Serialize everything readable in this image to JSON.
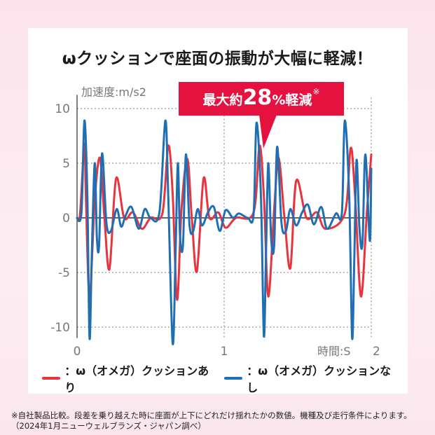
{
  "title": "ωクッションで座面の振動が大幅に軽減！",
  "callout": {
    "prefix": "最大約",
    "number": "28",
    "percent": "%",
    "suffix": "軽減",
    "mark": "※"
  },
  "legend": [
    {
      "label": "：ω（オメガ）クッションあり",
      "color": "#e8343f"
    },
    {
      "label": "：ω（オメガ）クッションなし",
      "color": "#1f6fb2"
    }
  ],
  "footnote": "※自社製品比較。段差を乗り越えた時に座面が上下にどれだけ揺れたかの数値。機種及び走行条件によります。（2024年1月ニューウェルブランズ・ジャパン調べ）",
  "chart_data": {
    "type": "line",
    "ylabel": "加速度:m/s2",
    "xlabel": "時間:S",
    "xlim": [
      0,
      2
    ],
    "ylim": [
      -11,
      11
    ],
    "x_ticks": [
      0,
      1,
      2
    ],
    "x_tick_labels": [
      "0",
      "1",
      "2"
    ],
    "y_ticks": [
      10,
      5,
      0,
      -5,
      -10
    ],
    "y_tick_labels": [
      "10",
      "5",
      "0",
      "-5",
      "-10"
    ],
    "grid": true,
    "series": [
      {
        "name": "ω（オメガ）クッションあり",
        "color": "#e8343f",
        "x": [
          0,
          0.02,
          0.05,
          0.06,
          0.085,
          0.12,
          0.155,
          0.185,
          0.22,
          0.265,
          0.32,
          0.38,
          0.44,
          0.5,
          0.58,
          0.62,
          0.65,
          0.68,
          0.71,
          0.75,
          0.78,
          0.815,
          0.86,
          0.9,
          0.96,
          1.01,
          1.08,
          1.2,
          1.24,
          1.27,
          1.3,
          1.34,
          1.37,
          1.41,
          1.45,
          1.49,
          1.56,
          1.63,
          1.69,
          1.82,
          1.86,
          1.89,
          1.93,
          1.97,
          2.0
        ],
        "y": [
          0,
          0.3,
          6.8,
          2,
          -7.3,
          1.6,
          5.5,
          0.3,
          -4.7,
          3.6,
          0,
          0.5,
          -1,
          0,
          0.4,
          6.6,
          2.2,
          -7.5,
          0.8,
          5.4,
          0,
          -4.9,
          3.6,
          0,
          0.5,
          -0.9,
          0,
          0.5,
          6.6,
          2,
          -7.2,
          0.8,
          5.5,
          0,
          -4.6,
          3.4,
          0,
          0.5,
          -1,
          0.4,
          6.4,
          2,
          -7.2,
          0.5,
          5.8
        ]
      },
      {
        "name": "ω（オメガ）クッションなし",
        "color": "#1f6fb2",
        "x": [
          0,
          0.03,
          0.05,
          0.07,
          0.085,
          0.1,
          0.12,
          0.135,
          0.15,
          0.17,
          0.2,
          0.23,
          0.27,
          0.3,
          0.33,
          0.37,
          0.42,
          0.46,
          0.5,
          0.56,
          0.6,
          0.62,
          0.65,
          0.67,
          0.685,
          0.7,
          0.72,
          0.74,
          0.765,
          0.79,
          0.82,
          0.85,
          0.89,
          0.93,
          0.97,
          1.01,
          1.06,
          1.1,
          1.16,
          1.2,
          1.22,
          1.25,
          1.27,
          1.285,
          1.3,
          1.32,
          1.34,
          1.36,
          1.39,
          1.42,
          1.45,
          1.49,
          1.53,
          1.57,
          1.61,
          1.66,
          1.7,
          1.76,
          1.8,
          1.82,
          1.85,
          1.87,
          1.885,
          1.9,
          1.92,
          1.94,
          1.96,
          1.99,
          2.0
        ],
        "y": [
          0,
          0.5,
          8.9,
          2,
          -11,
          -3.5,
          5,
          -1.8,
          -2.5,
          5.9,
          -0.5,
          -1.2,
          0.8,
          -0.8,
          0.2,
          1,
          -1,
          0.8,
          0,
          0.5,
          8.9,
          2,
          -11.5,
          -3,
          5,
          -1.7,
          -2.5,
          5.8,
          -0.7,
          -1.2,
          0.8,
          -0.7,
          0.5,
          1,
          -1.2,
          0.7,
          0,
          0.4,
          0,
          0.3,
          8.7,
          2,
          -10.8,
          -3,
          5,
          -2,
          -2.5,
          6.5,
          -0.5,
          -1.2,
          0.8,
          -0.7,
          0.5,
          1.2,
          -0.6,
          1,
          -1,
          0.4,
          0.4,
          8.9,
          2,
          -11,
          -3.5,
          5.3,
          -1,
          -2.4,
          5.8,
          -2.1,
          4.5
        ]
      }
    ]
  }
}
